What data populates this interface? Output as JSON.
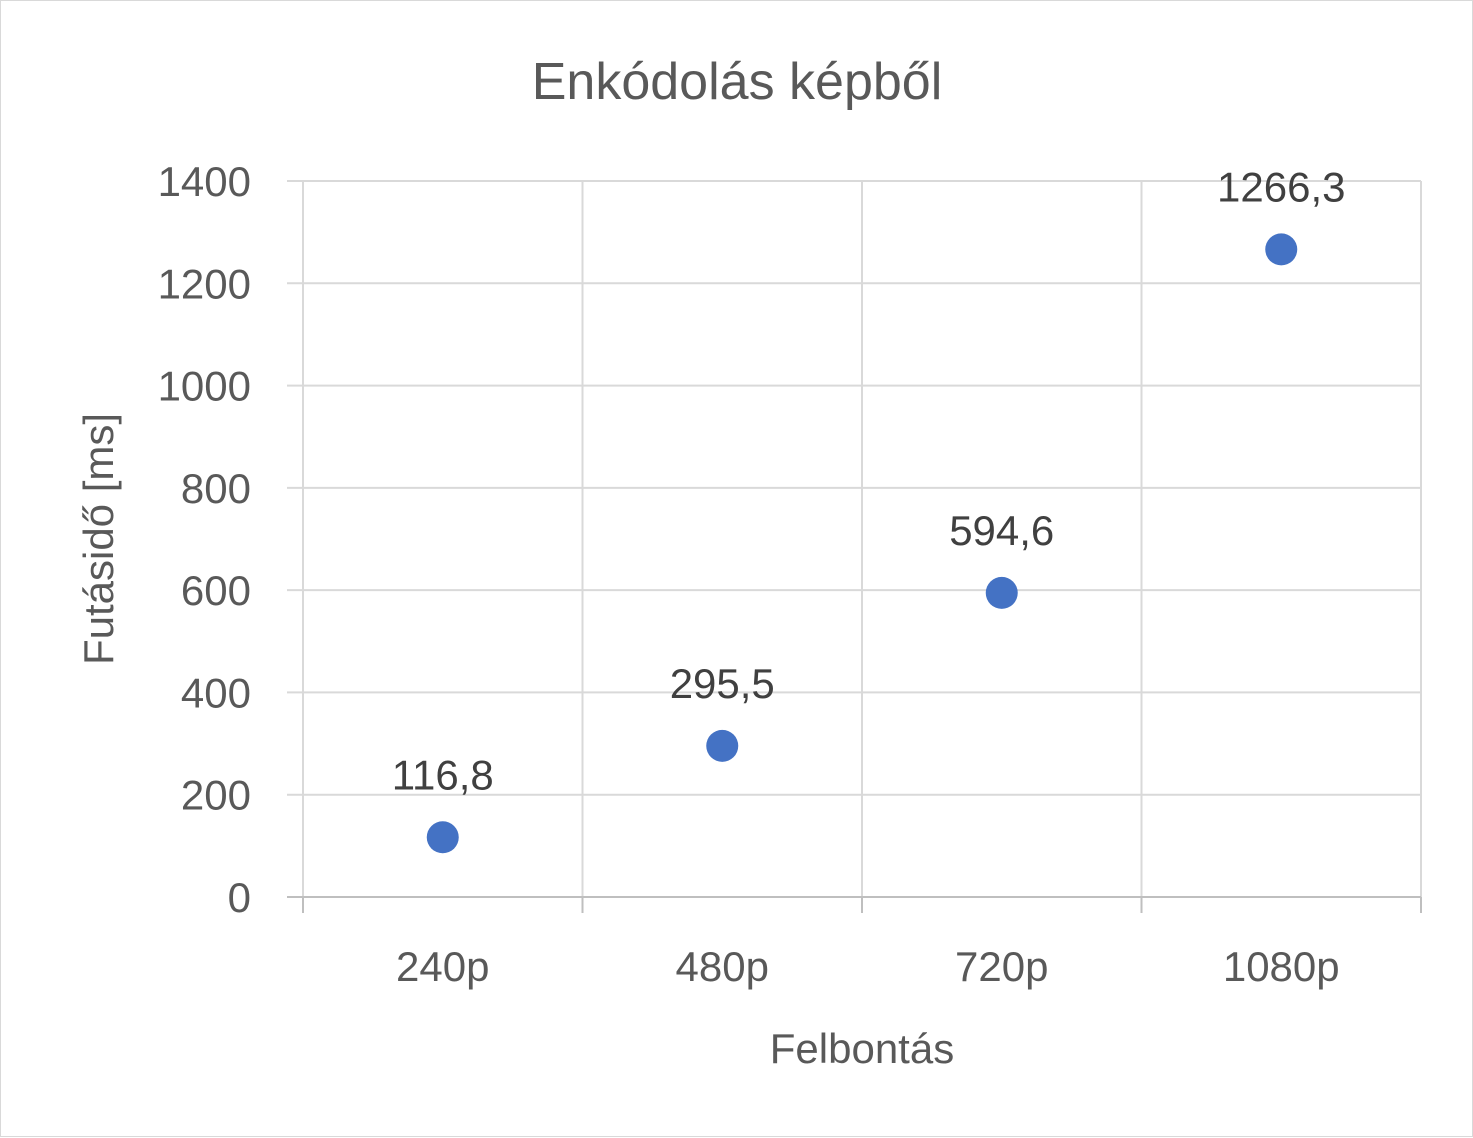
{
  "chart_data": {
    "type": "scatter",
    "title": "Enkódolás képből",
    "xlabel": "Felbontás",
    "ylabel": "Futásidő [ms]",
    "categories": [
      "240p",
      "480p",
      "720p",
      "1080p"
    ],
    "values": [
      116.8,
      295.5,
      594.6,
      1266.3
    ],
    "data_labels": [
      "116,8",
      "295,5",
      "594,6",
      "1266,3"
    ],
    "ylim": [
      0,
      1400
    ],
    "yticks": [
      0,
      200,
      400,
      600,
      800,
      1000,
      1200,
      1400
    ],
    "grid": true,
    "legend": "none",
    "marker_color": "#4472c4"
  }
}
